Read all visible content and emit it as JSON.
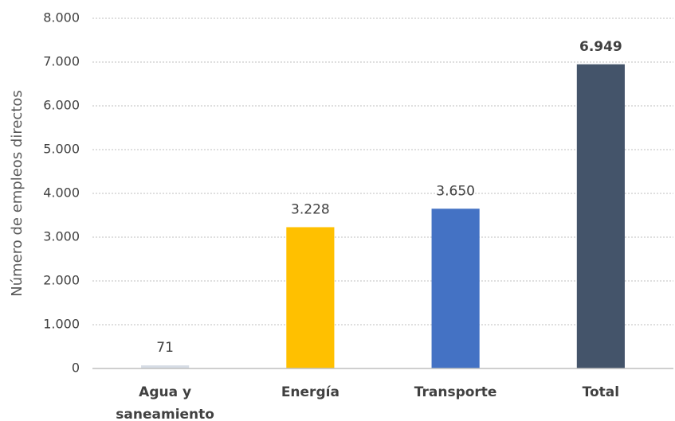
{
  "chart_data": {
    "type": "bar",
    "y_label": "Número de empleos directos",
    "categories": [
      "Agua y saneamiento",
      "Energía",
      "Transporte",
      "Total"
    ],
    "values": [
      71,
      3228,
      3650,
      6949
    ],
    "value_labels": [
      "71",
      "3.228",
      "3.650",
      "6.949"
    ],
    "colors": [
      "#d6dce5",
      "#ffc000",
      "#4472c4",
      "#44546a"
    ],
    "ylim": [
      0,
      8000
    ],
    "yticks": [
      0,
      {
        "value": 1000,
        "label": "1.000"
      },
      {
        "value": 2000,
        "label": "2.000"
      },
      {
        "value": 3000,
        "label": "3.000"
      },
      {
        "value": 4000,
        "label": "4.000"
      },
      {
        "value": 5000,
        "label": "5.000"
      },
      {
        "value": 6000,
        "label": "6.000"
      },
      {
        "value": 7000,
        "label": "7.000"
      },
      {
        "value": 8000,
        "label": "8.000"
      }
    ],
    "grid": true
  }
}
